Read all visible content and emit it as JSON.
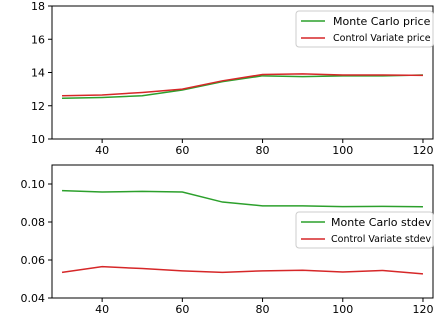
{
  "chart_data": [
    {
      "type": "line",
      "title": "",
      "xlabel": "",
      "ylabel": "",
      "x": [
        30,
        40,
        50,
        60,
        70,
        80,
        90,
        100,
        110,
        120
      ],
      "xlim": [
        27.5,
        122.5
      ],
      "ylim": [
        10,
        18
      ],
      "xticks": [
        40,
        60,
        80,
        100,
        120
      ],
      "yticks": [
        10,
        12,
        14,
        16,
        18
      ],
      "xtick_labels": [
        "40",
        "60",
        "80",
        "100",
        "120"
      ],
      "ytick_labels": [
        "10",
        "12",
        "14",
        "16",
        "18"
      ],
      "legend_position": "top-right",
      "grid": false,
      "series": [
        {
          "name": "Monte Carlo price",
          "color": "#2ca02c",
          "values": [
            12.45,
            12.5,
            12.6,
            12.95,
            13.45,
            13.8,
            13.75,
            13.8,
            13.8,
            13.85
          ]
        },
        {
          "name": "Control Variate price",
          "color": "#d62728",
          "values": [
            12.6,
            12.65,
            12.8,
            13.0,
            13.5,
            13.88,
            13.92,
            13.85,
            13.85,
            13.83
          ]
        }
      ]
    },
    {
      "type": "line",
      "title": "",
      "xlabel": "",
      "ylabel": "",
      "x": [
        30,
        40,
        50,
        60,
        70,
        80,
        90,
        100,
        110,
        120
      ],
      "xlim": [
        27.5,
        122.5
      ],
      "ylim": [
        0.04,
        0.11
      ],
      "xticks": [
        40,
        60,
        80,
        100,
        120
      ],
      "yticks": [
        0.04,
        0.06,
        0.08,
        0.1
      ],
      "xtick_labels": [
        "40",
        "60",
        "80",
        "100",
        "120"
      ],
      "ytick_labels": [
        "0.04",
        "0.06",
        "0.08",
        "0.10"
      ],
      "legend_position": "center-right",
      "grid": false,
      "series": [
        {
          "name": "Monte Carlo stdev",
          "color": "#2ca02c",
          "values": [
            0.0965,
            0.0958,
            0.0961,
            0.0958,
            0.0905,
            0.0885,
            0.0885,
            0.0881,
            0.0882,
            0.088
          ]
        },
        {
          "name": "Control Variate stdev",
          "color": "#d62728",
          "values": [
            0.0535,
            0.0565,
            0.0555,
            0.0543,
            0.0535,
            0.0543,
            0.0546,
            0.0537,
            0.0545,
            0.0527
          ]
        }
      ]
    }
  ]
}
